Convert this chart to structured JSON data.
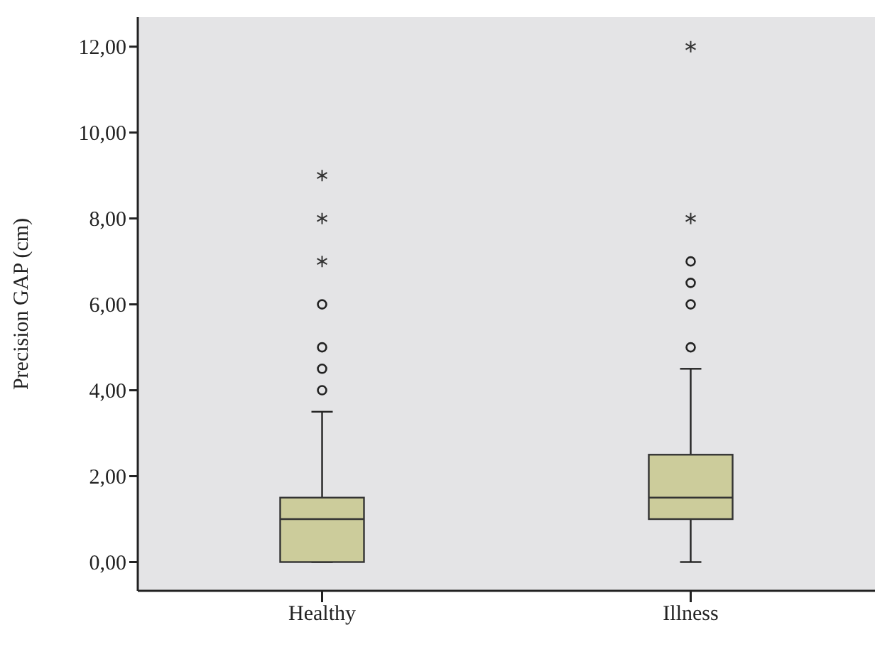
{
  "chart_data": {
    "type": "box",
    "ylabel": "Precision GAP (cm)",
    "categories": [
      "Healthy",
      "Illness"
    ],
    "color": "#cccc9b",
    "boxes": [
      {
        "low": 0,
        "q1": 0,
        "median": 1,
        "q3": 1.5,
        "high": 3.5,
        "outliers": [
          4,
          4.5,
          5,
          6,
          7,
          8,
          9
        ]
      },
      {
        "low": 0,
        "q1": 1,
        "median": 1.5,
        "q3": 2.5,
        "high": 4.5,
        "outliers": [
          5,
          6,
          6.5,
          7,
          8,
          12
        ]
      }
    ],
    "ylim": [
      -0.67,
      12.69
    ],
    "yticks": [
      {
        "value": 0,
        "label": "0,00"
      },
      {
        "value": 2,
        "label": "2,00"
      },
      {
        "value": 4,
        "label": "4,00"
      },
      {
        "value": 6,
        "label": "6,00"
      },
      {
        "value": 8,
        "label": "8,00"
      },
      {
        "value": 10,
        "label": "10,00"
      },
      {
        "value": 12,
        "label": "12,00"
      }
    ],
    "grid": false,
    "legend": false
  }
}
